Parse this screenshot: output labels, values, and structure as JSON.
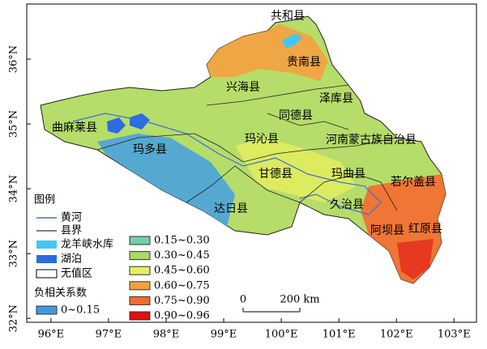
{
  "map": {
    "xlim": [
      95.58,
      103.39
    ],
    "ylim": [
      31.94,
      36.85
    ],
    "xticks": [
      {
        "value": 96,
        "label": "96°E"
      },
      {
        "value": 97,
        "label": "97°E"
      },
      {
        "value": 98,
        "label": "98°E"
      },
      {
        "value": 99,
        "label": "99°E"
      },
      {
        "value": 100,
        "label": "100°E"
      },
      {
        "value": 101,
        "label": "101°E"
      },
      {
        "value": 102,
        "label": "102°E"
      },
      {
        "value": 103,
        "label": "103°E"
      }
    ],
    "yticks": [
      {
        "value": 32,
        "label": "32°N"
      },
      {
        "value": 33,
        "label": "33°N"
      },
      {
        "value": 34,
        "label": "34°N"
      },
      {
        "value": 35,
        "label": "35°N"
      },
      {
        "value": 36,
        "label": "36°N"
      }
    ],
    "counties": [
      "共和县",
      "贵南县",
      "兴海县",
      "泽库县",
      "同德县",
      "曲麻莱县",
      "玛沁县",
      "河南蒙古族自治县",
      "玛多县",
      "甘德县",
      "玛曲县",
      "若尔盖县",
      "久治县",
      "达日县",
      "红原县",
      "阿坝县"
    ],
    "legend": {
      "title": "图例",
      "items": [
        "黄河",
        "县界",
        "龙羊峡水库",
        "湖泊",
        "无值区"
      ],
      "negative_title": "负相关系数",
      "negative_classes": [
        {
          "label": "0~0.15",
          "color": "#3f9be0"
        }
      ],
      "classes": [
        {
          "label": "0.15~0.30",
          "color": "#74cfa4"
        },
        {
          "label": "0.30~0.45",
          "color": "#a9d86c"
        },
        {
          "label": "0.45~0.60",
          "color": "#e6ef5e"
        },
        {
          "label": "0.60~0.75",
          "color": "#f5a040"
        },
        {
          "label": "0.75~0.90",
          "color": "#f56a30"
        },
        {
          "label": "0.90~0.96",
          "color": "#e01010"
        }
      ]
    },
    "scale_bar": {
      "start": "0",
      "end": "200 km"
    }
  }
}
